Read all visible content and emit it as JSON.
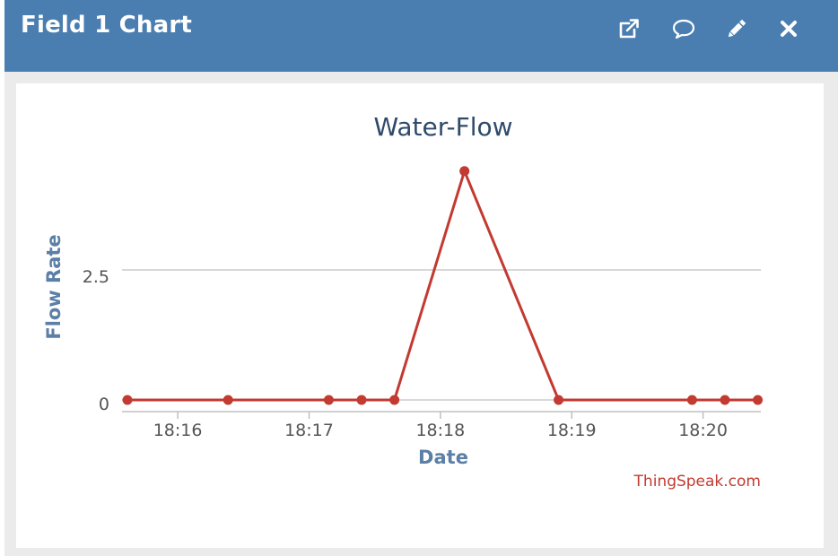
{
  "header": {
    "title": "Field 1 Chart",
    "buttons": [
      {
        "icon": "external-link-icon"
      },
      {
        "icon": "comment-icon"
      },
      {
        "icon": "pencil-icon"
      },
      {
        "icon": "close-icon"
      }
    ]
  },
  "colors": {
    "header_bg": "#4a7eb0",
    "series": "#c23a31",
    "title": "#2f4a6b",
    "axis_title": "#5b7fa6",
    "credit": "#c23a31"
  },
  "credit": "ThingSpeak.com",
  "chart_data": {
    "type": "line",
    "title": "Water-Flow",
    "xlabel": "Date",
    "ylabel": "Flow Rate",
    "x_ticks": [
      "18:16",
      "18:17",
      "18:18",
      "18:19",
      "18:20"
    ],
    "y_ticks": [
      "0",
      "2.5"
    ],
    "ylim": [
      0,
      4.3
    ],
    "xlim": [
      "18:15:37",
      "18:20:26"
    ],
    "grid": true,
    "legend": "none",
    "series": [
      {
        "x": [
          "18:15:37",
          "18:16:23",
          "18:17:09",
          "18:17:24",
          "18:17:39",
          "18:18:11",
          "18:18:54",
          "18:19:55",
          "18:20:10",
          "18:20:25"
        ],
        "y": [
          0,
          0,
          0,
          0,
          0,
          4.4,
          0,
          0,
          0,
          0
        ]
      }
    ]
  }
}
